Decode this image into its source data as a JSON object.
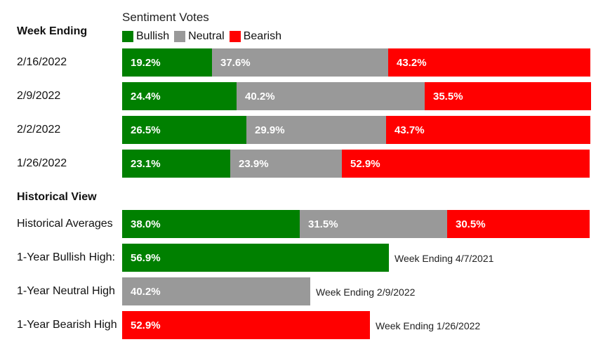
{
  "legend": {
    "title": "Sentiment Votes",
    "items": [
      {
        "label": "Bullish",
        "color": "#008000"
      },
      {
        "label": "Neutral",
        "color": "#999999"
      },
      {
        "label": "Bearish",
        "color": "#ff0000"
      }
    ]
  },
  "sections": {
    "weekly": "Week Ending",
    "historical": "Historical View"
  },
  "chart_data": {
    "type": "bar",
    "stacked": true,
    "orientation": "horizontal",
    "title": "Sentiment Votes",
    "colors": {
      "Bullish": "#008000",
      "Neutral": "#999999",
      "Bearish": "#ff0000"
    },
    "weekly": [
      {
        "label": "2/16/2022",
        "values": [
          {
            "series": "Bullish",
            "value": 19.2,
            "text": "19.2%"
          },
          {
            "series": "Neutral",
            "value": 37.6,
            "text": "37.6%"
          },
          {
            "series": "Bearish",
            "value": 43.2,
            "text": "43.2%"
          }
        ]
      },
      {
        "label": "2/9/2022",
        "values": [
          {
            "series": "Bullish",
            "value": 24.4,
            "text": "24.4%"
          },
          {
            "series": "Neutral",
            "value": 40.2,
            "text": "40.2%"
          },
          {
            "series": "Bearish",
            "value": 35.5,
            "text": "35.5%"
          }
        ]
      },
      {
        "label": "2/2/2022",
        "values": [
          {
            "series": "Bullish",
            "value": 26.5,
            "text": "26.5%"
          },
          {
            "series": "Neutral",
            "value": 29.9,
            "text": "29.9%"
          },
          {
            "series": "Bearish",
            "value": 43.7,
            "text": "43.7%"
          }
        ]
      },
      {
        "label": "1/26/2022",
        "values": [
          {
            "series": "Bullish",
            "value": 23.1,
            "text": "23.1%"
          },
          {
            "series": "Neutral",
            "value": 23.9,
            "text": "23.9%"
          },
          {
            "series": "Bearish",
            "value": 52.9,
            "text": "52.9%"
          }
        ]
      }
    ],
    "historical": [
      {
        "label": "Historical Averages",
        "values": [
          {
            "series": "Bullish",
            "value": 38.0,
            "text": "38.0%"
          },
          {
            "series": "Neutral",
            "value": 31.5,
            "text": "31.5%"
          },
          {
            "series": "Bearish",
            "value": 30.5,
            "text": "30.5%"
          }
        ]
      },
      {
        "label": "1-Year Bullish High:",
        "note": "Week Ending 4/7/2021",
        "values": [
          {
            "series": "Bullish",
            "value": 56.9,
            "text": "56.9%"
          }
        ]
      },
      {
        "label": "1-Year Neutral High",
        "note": "Week Ending 2/9/2022",
        "values": [
          {
            "series": "Neutral",
            "value": 40.2,
            "text": "40.2%"
          }
        ]
      },
      {
        "label": "1-Year Bearish High",
        "note": "Week Ending 1/26/2022",
        "values": [
          {
            "series": "Bearish",
            "value": 52.9,
            "text": "52.9%"
          }
        ]
      }
    ]
  }
}
